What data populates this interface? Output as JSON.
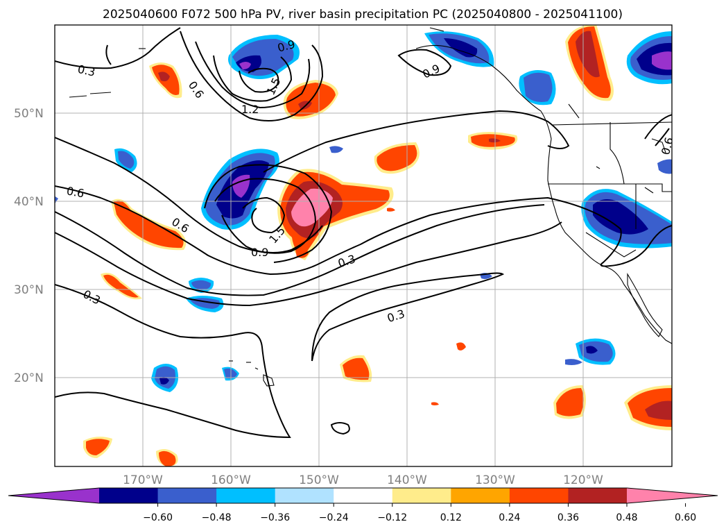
{
  "title": "2025040600 F072 500 hPa PV, river basin precipitation PC (2025040800 - 2025041100)",
  "map": {
    "lon_range": [
      -180,
      -110
    ],
    "lat_range": [
      10,
      60
    ],
    "lat_labels": [
      "50°N",
      "40°N",
      "30°N",
      "20°N"
    ],
    "lon_labels": [
      "170°W",
      "160°W",
      "150°W",
      "140°W",
      "130°W",
      "120°W"
    ]
  },
  "contour_labels": [
    {
      "text": "0.3"
    },
    {
      "text": "0.6"
    },
    {
      "text": "0.9"
    },
    {
      "text": "1.5"
    },
    {
      "text": "1.2"
    },
    {
      "text": "0.9"
    },
    {
      "text": "0.6"
    },
    {
      "text": "0.6"
    },
    {
      "text": "1.5"
    },
    {
      "text": "0.9"
    },
    {
      "text": "0.3"
    },
    {
      "text": "0.3"
    },
    {
      "text": "0.3"
    },
    {
      "text": "0.6"
    }
  ],
  "colorbar": {
    "ticks": [
      "−0.60",
      "−0.48",
      "−0.36",
      "−0.24",
      "−0.12",
      "0.12",
      "0.24",
      "0.36",
      "0.48",
      "0.60"
    ],
    "colors": [
      "#9932cc",
      "#00008b",
      "#3a5fcd",
      "#00bfff",
      "#b0e2ff",
      "#ffffff",
      "#ffec8b",
      "#ffa500",
      "#ff4500",
      "#b22222",
      "#ff82ab"
    ]
  }
}
